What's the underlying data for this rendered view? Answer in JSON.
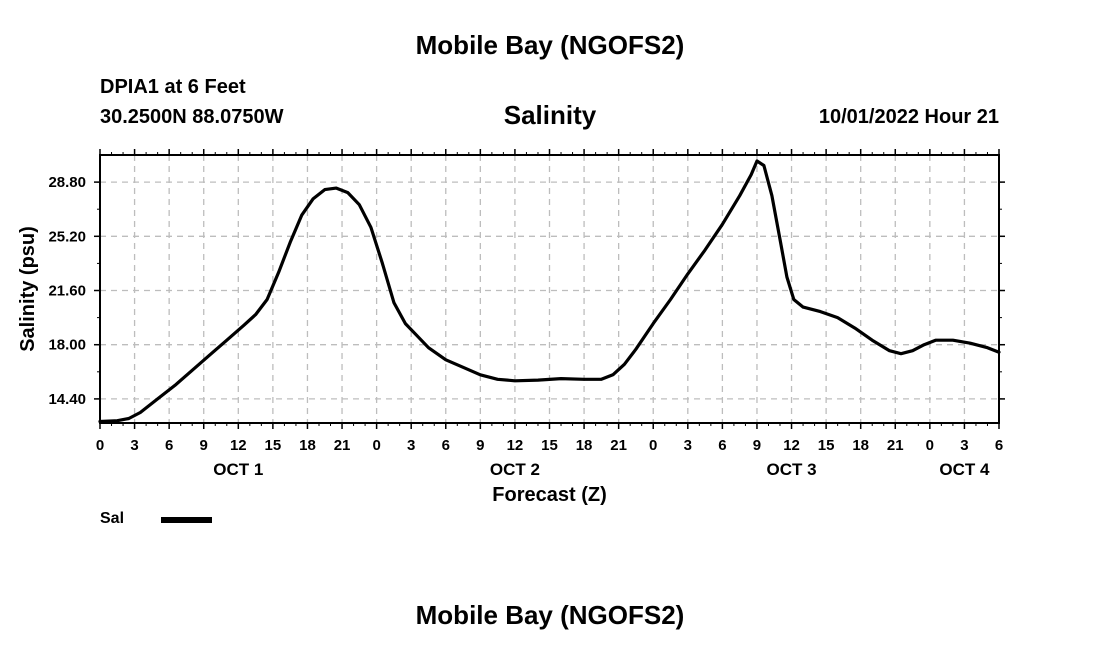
{
  "header": {
    "top_title": "Mobile Bay (NGOFS2)",
    "station": "DPIA1 at 6 Feet",
    "coords": "30.2500N  88.0750W",
    "chart_title": "Salinity",
    "timestamp": "10/01/2022 Hour 21",
    "bottom_title": "Mobile Bay (NGOFS2)"
  },
  "legend": {
    "label": "Sal",
    "color": "#000000"
  },
  "chart_data": {
    "type": "line",
    "title": "Salinity",
    "xlabel": "Forecast (Z)",
    "ylabel": "Salinity (psu)",
    "x_unit": "hours from OCT 1 00Z",
    "xlim": [
      0,
      78
    ],
    "ylim": [
      12.8,
      30.6
    ],
    "yticks": [
      14.4,
      18.0,
      21.6,
      25.2,
      28.8
    ],
    "ytick_labels": [
      "14.40",
      "18.00",
      "21.60",
      "25.20",
      "28.80"
    ],
    "xticks": [
      0,
      3,
      6,
      9,
      12,
      15,
      18,
      21,
      24,
      27,
      30,
      33,
      36,
      39,
      42,
      45,
      48,
      51,
      54,
      57,
      60,
      63,
      66,
      69,
      72,
      75,
      78
    ],
    "xtick_labels": [
      "0",
      "3",
      "6",
      "9",
      "12",
      "15",
      "18",
      "21",
      "0",
      "3",
      "6",
      "9",
      "12",
      "15",
      "18",
      "21",
      "0",
      "3",
      "6",
      "9",
      "12",
      "15",
      "18",
      "21",
      "0",
      "3",
      "6"
    ],
    "date_labels": [
      {
        "x": 12,
        "label": "OCT 1"
      },
      {
        "x": 36,
        "label": "OCT 2"
      },
      {
        "x": 60,
        "label": "OCT 3"
      },
      {
        "x": 75,
        "label": "OCT 4"
      }
    ],
    "grid": true,
    "legend_position": "bottom-left",
    "series": [
      {
        "name": "Sal",
        "color": "#000000",
        "points": [
          [
            0,
            12.9
          ],
          [
            1.5,
            12.95
          ],
          [
            2.5,
            13.1
          ],
          [
            3.5,
            13.5
          ],
          [
            5,
            14.4
          ],
          [
            6.5,
            15.3
          ],
          [
            8,
            16.3
          ],
          [
            9.5,
            17.3
          ],
          [
            11,
            18.3
          ],
          [
            12.5,
            19.3
          ],
          [
            13.5,
            20.0
          ],
          [
            14.5,
            21.0
          ],
          [
            15.5,
            22.8
          ],
          [
            16.5,
            24.8
          ],
          [
            17.5,
            26.6
          ],
          [
            18.5,
            27.7
          ],
          [
            19.5,
            28.3
          ],
          [
            20.5,
            28.4
          ],
          [
            21.5,
            28.1
          ],
          [
            22.5,
            27.3
          ],
          [
            23.5,
            25.8
          ],
          [
            24.5,
            23.4
          ],
          [
            25.5,
            20.8
          ],
          [
            26.5,
            19.4
          ],
          [
            27.5,
            18.6
          ],
          [
            28.5,
            17.8
          ],
          [
            30,
            17.0
          ],
          [
            31.5,
            16.5
          ],
          [
            33,
            16.0
          ],
          [
            34.5,
            15.7
          ],
          [
            36,
            15.6
          ],
          [
            38,
            15.65
          ],
          [
            40,
            15.75
          ],
          [
            42,
            15.7
          ],
          [
            43.5,
            15.7
          ],
          [
            44.5,
            16.0
          ],
          [
            45.5,
            16.7
          ],
          [
            46.5,
            17.7
          ],
          [
            48,
            19.4
          ],
          [
            49.5,
            21.0
          ],
          [
            51,
            22.7
          ],
          [
            52.5,
            24.3
          ],
          [
            54,
            26.0
          ],
          [
            55.5,
            27.9
          ],
          [
            56.5,
            29.3
          ],
          [
            57,
            30.2
          ],
          [
            57.6,
            29.9
          ],
          [
            58.3,
            27.9
          ],
          [
            59,
            25.0
          ],
          [
            59.6,
            22.5
          ],
          [
            60.2,
            21.0
          ],
          [
            61,
            20.5
          ],
          [
            62.5,
            20.2
          ],
          [
            64,
            19.8
          ],
          [
            65.5,
            19.1
          ],
          [
            67,
            18.3
          ],
          [
            68.5,
            17.6
          ],
          [
            69.5,
            17.4
          ],
          [
            70.5,
            17.6
          ],
          [
            71.5,
            18.0
          ],
          [
            72.5,
            18.3
          ],
          [
            74,
            18.3
          ],
          [
            75.5,
            18.1
          ],
          [
            77,
            17.8
          ],
          [
            78,
            17.5
          ]
        ]
      }
    ]
  }
}
